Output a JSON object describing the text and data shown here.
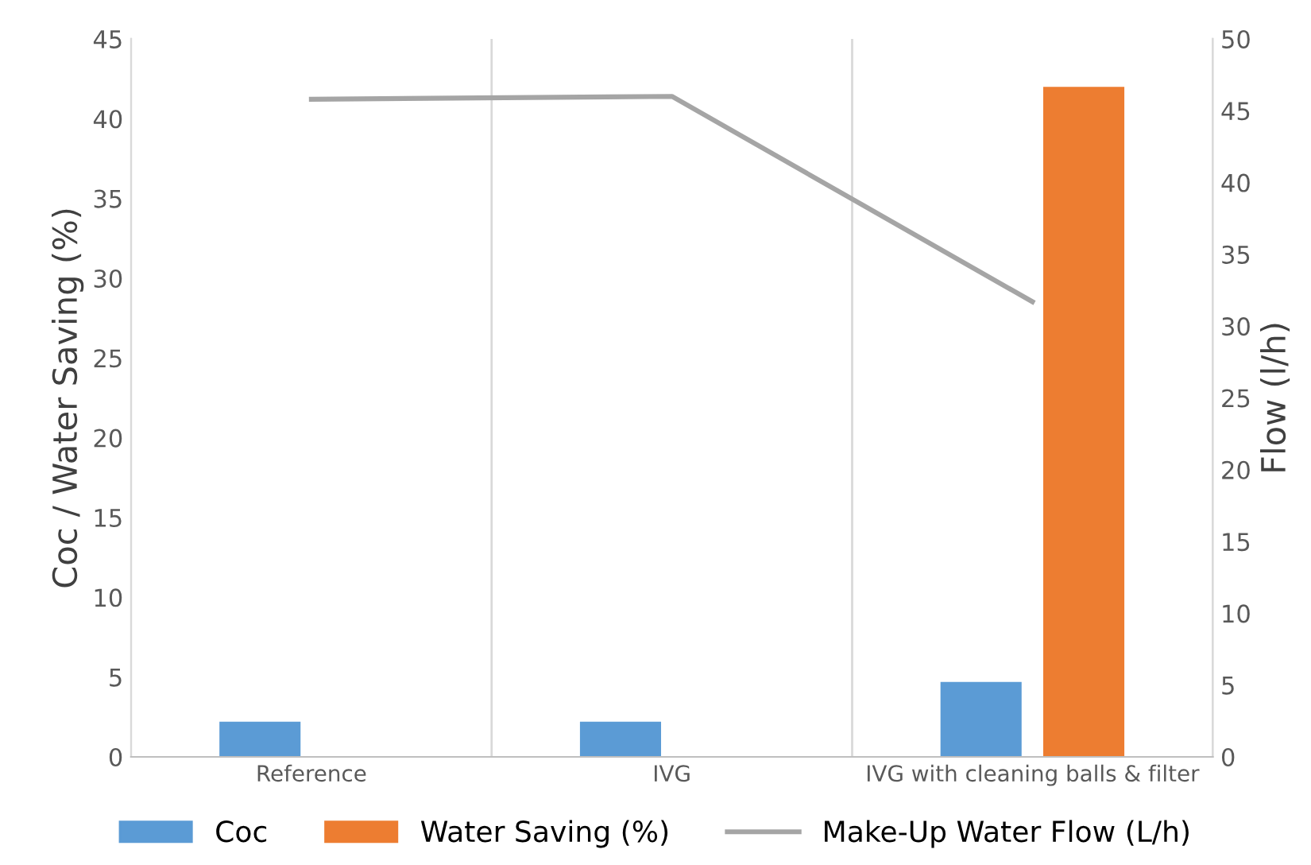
{
  "chart_data": {
    "type": "bar",
    "categories": [
      "Reference",
      "IVG",
      "IVG with cleaning balls & filter"
    ],
    "series": [
      {
        "name": "Coc",
        "color": "#5b9bd5",
        "values": [
          2.2,
          2.2,
          4.7
        ]
      },
      {
        "name": "Water Saving (%)",
        "color": "#ed7d31",
        "values": [
          null,
          null,
          42
        ]
      },
      {
        "name": "Make-Up Water Flow (L/h)",
        "color": "#a5a5a5",
        "type": "line",
        "axis": "y2",
        "values": [
          45.8,
          46,
          31.7
        ]
      }
    ],
    "ylabel": "Coc / Water Saving (%)",
    "y2label": "Flow (l/h)",
    "ylim": [
      0,
      45
    ],
    "yticks": [
      0,
      5,
      10,
      15,
      20,
      25,
      30,
      35,
      40,
      45
    ],
    "y2lim": [
      0,
      50
    ],
    "y2ticks": [
      0,
      5,
      10,
      15,
      20,
      25,
      30,
      35,
      40,
      45,
      50
    ],
    "grid": "x",
    "legend": "bottom",
    "marker": "none",
    "line_style": "solid"
  }
}
